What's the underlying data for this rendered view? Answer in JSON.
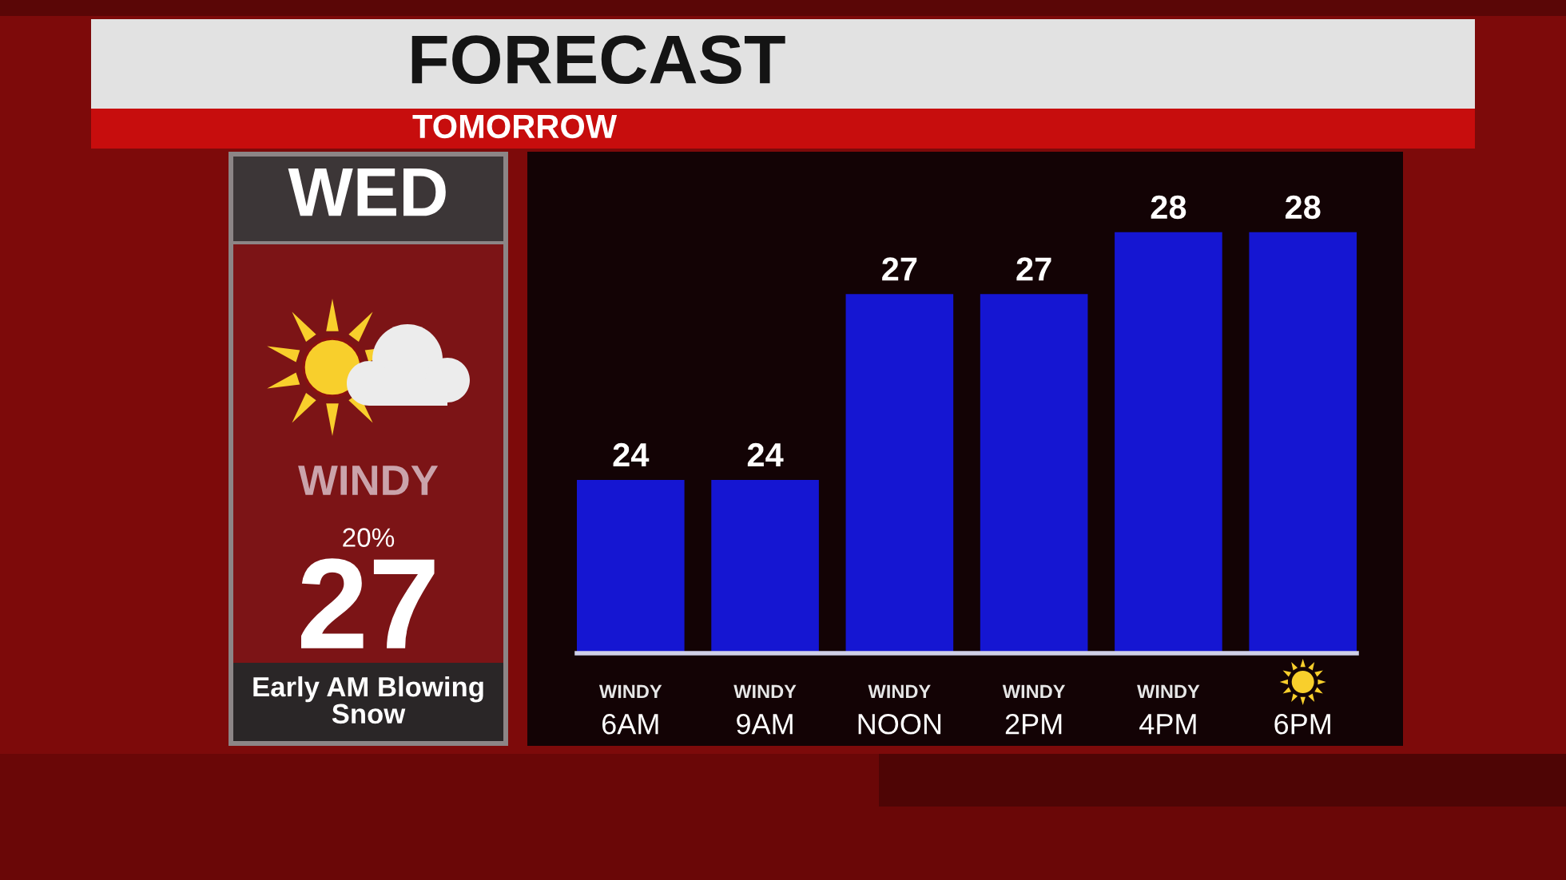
{
  "chart_data": [
    {
      "type": "other",
      "title": "WED",
      "annotations": [
        "WINDY",
        "20%",
        "27",
        "Early AM Blowing Snow"
      ]
    },
    {
      "type": "bar",
      "title": "FORECAST",
      "subtitle": "TOMORROW",
      "categories": [
        "6AM",
        "9AM",
        "NOON",
        "2PM",
        "4PM",
        "6PM"
      ],
      "values": [
        24,
        24,
        27,
        27,
        28,
        28
      ],
      "color": "#1516d2",
      "data_labels": true,
      "ylim": [
        21.2,
        29.3
      ],
      "tick_labels": "x",
      "annotations": [
        "WINDY",
        "WINDY",
        "WINDY",
        "WINDY",
        "WINDY"
      ]
    }
  ]
}
